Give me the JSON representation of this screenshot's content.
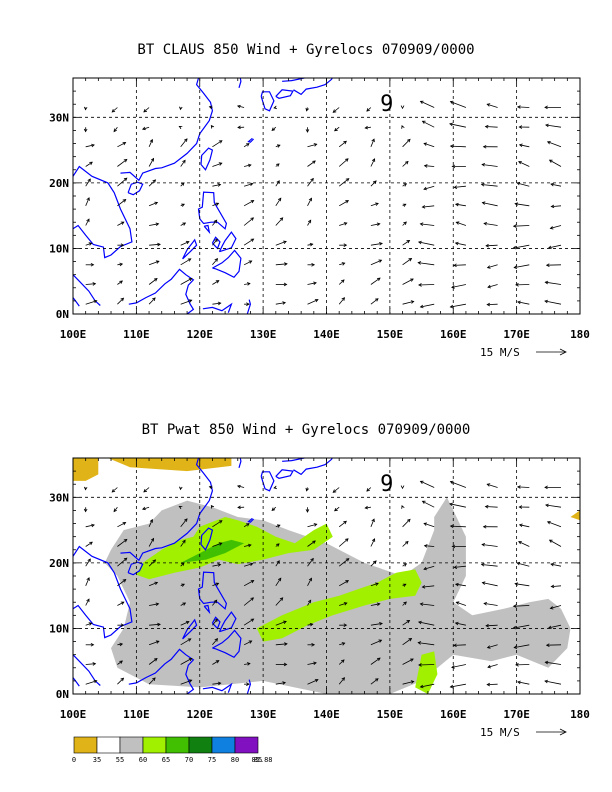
{
  "panels": [
    {
      "title": "BT CLAUS 850 Wind + Gyrelocs 070909/0000",
      "storm_marker": "9",
      "shaded": false
    },
    {
      "title": "BT Pwat 850 Wind + Gyrelocs 070909/0000",
      "storm_marker": "9",
      "shaded": true
    }
  ],
  "axes": {
    "x_ticks": [
      "100E",
      "110E",
      "120E",
      "130E",
      "140E",
      "150E",
      "160E",
      "170E",
      "180"
    ],
    "y_ticks": [
      "0N",
      "10N",
      "20N",
      "30N"
    ],
    "lon_range": [
      100,
      180
    ],
    "lat_range": [
      0,
      36
    ]
  },
  "reference_vector": "15 M/S",
  "colorbar": {
    "labels": [
      "0",
      "35",
      "55",
      "60",
      "65",
      "70",
      "75",
      "80",
      "85",
      "85.88"
    ],
    "colors": [
      "#e0b418",
      "#ffffff",
      "#c0c0c0",
      "#a0f000",
      "#40c000",
      "#108010",
      "#1080e0",
      "#8010c0"
    ]
  },
  "colors": {
    "coastline": "#0000ff",
    "grid": "#000000",
    "vector": "#000000"
  }
}
